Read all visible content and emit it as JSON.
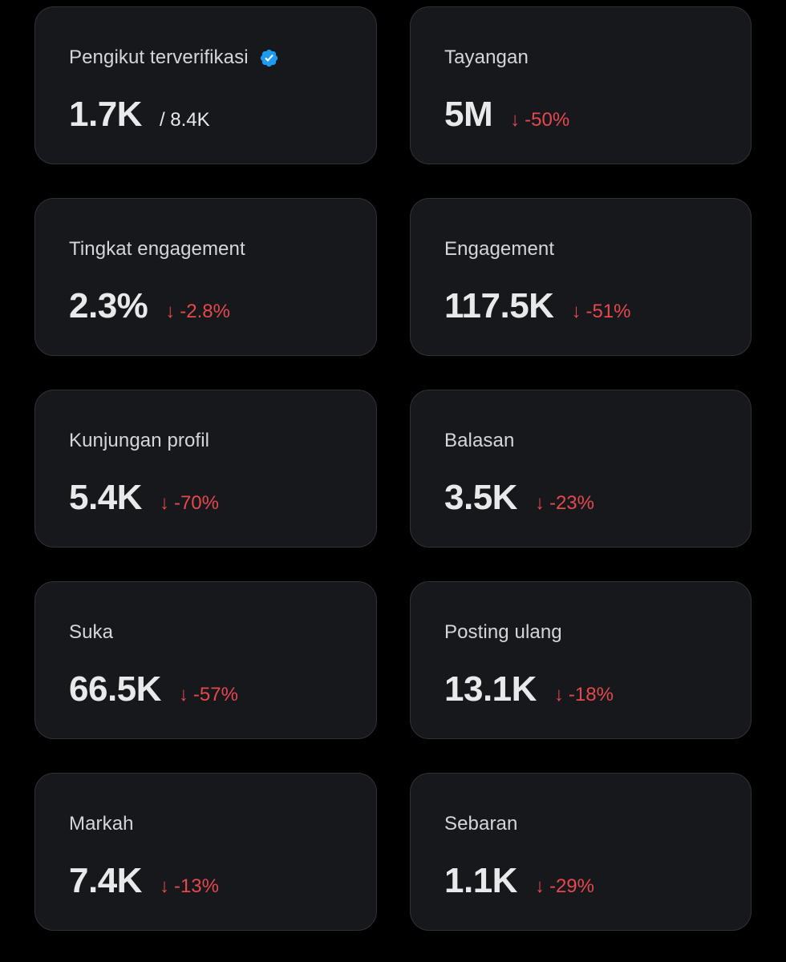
{
  "colors": {
    "background": "#000000",
    "card_background": "#16181c",
    "card_border": "#2f3336",
    "title_text": "#d4d6d9",
    "value_text": "#e7e9ea",
    "negative_change": "#e5484d",
    "verified_badge": "#1d9bf0"
  },
  "cards": [
    {
      "title": "Pengikut terverifikasi",
      "icon": "verified-badge-icon",
      "value": "1.7K",
      "secondary": "/ 8.4K"
    },
    {
      "title": "Tayangan",
      "value": "5M",
      "change": "-50%",
      "change_icon": "arrow-down-icon"
    },
    {
      "title": "Tingkat engagement",
      "value": "2.3%",
      "change": "-2.8%",
      "change_icon": "arrow-down-icon"
    },
    {
      "title": "Engagement",
      "value": "117.5K",
      "change": "-51%",
      "change_icon": "arrow-down-icon"
    },
    {
      "title": "Kunjungan profil",
      "value": "5.4K",
      "change": "-70%",
      "change_icon": "arrow-down-icon"
    },
    {
      "title": "Balasan",
      "value": "3.5K",
      "change": "-23%",
      "change_icon": "arrow-down-icon"
    },
    {
      "title": "Suka",
      "value": "66.5K",
      "change": "-57%",
      "change_icon": "arrow-down-icon"
    },
    {
      "title": "Posting ulang",
      "value": "13.1K",
      "change": "-18%",
      "change_icon": "arrow-down-icon"
    },
    {
      "title": "Markah",
      "value": "7.4K",
      "change": "-13%",
      "change_icon": "arrow-down-icon"
    },
    {
      "title": "Sebaran",
      "value": "1.1K",
      "change": "-29%",
      "change_icon": "arrow-down-icon"
    }
  ]
}
